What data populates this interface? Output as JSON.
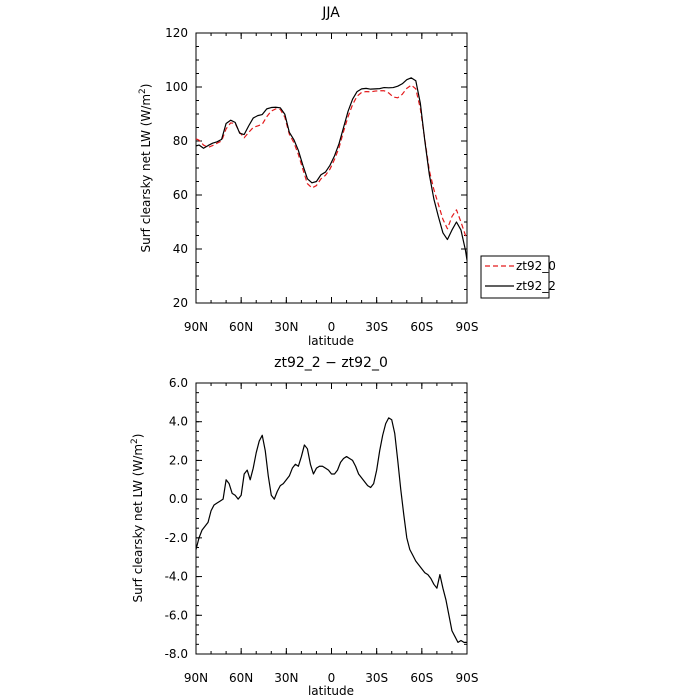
{
  "chart_data": [
    {
      "type": "line",
      "title": "JJA",
      "xlabel": "latitude",
      "ylabel": "Surf clearsky net LW (W/m",
      "ylabel_sup": "2",
      "ylabel_tail": ")",
      "x_ticks": [
        "90N",
        "60N",
        "30N",
        "0",
        "30S",
        "60S",
        "90S"
      ],
      "x_tick_values": [
        90,
        60,
        30,
        0,
        -30,
        -60,
        -90
      ],
      "xlim": [
        90,
        -90
      ],
      "ylim": [
        20,
        120
      ],
      "y_ticks": [
        "20",
        "40",
        "60",
        "80",
        "100",
        "120"
      ],
      "y_tick_values": [
        20,
        40,
        60,
        80,
        100,
        120
      ],
      "grid": false,
      "legend": {
        "placement": "right",
        "entries": [
          "zt92_0",
          "zt92_2"
        ]
      },
      "series": [
        {
          "name": "zt92_0",
          "color": "#e31a1c",
          "dash": "dashed",
          "x": [
            90,
            88,
            85,
            82,
            79,
            76,
            73,
            70,
            67,
            64,
            61,
            58,
            55,
            52,
            49,
            46,
            43,
            40,
            37,
            34,
            31,
            28,
            25,
            22,
            19,
            16,
            13,
            10,
            7,
            4,
            1,
            -2,
            -5,
            -8,
            -11,
            -14,
            -17,
            -20,
            -23,
            -26,
            -29,
            -32,
            -35,
            -38,
            -41,
            -44,
            -47,
            -50,
            -53,
            -56,
            -59,
            -62,
            -65,
            -68,
            -71,
            -74,
            -77,
            -80,
            -83,
            -86,
            -89,
            -90
          ],
          "y": [
            80.8,
            80.3,
            78.5,
            77.6,
            78.3,
            79.2,
            80.0,
            84.5,
            86.7,
            86.5,
            83.2,
            81.2,
            83.2,
            85.0,
            85.6,
            86.2,
            89.0,
            91.1,
            91.9,
            91.7,
            88.8,
            82.5,
            79.4,
            75.0,
            69.5,
            64.2,
            62.6,
            63.5,
            66.0,
            67.3,
            69.6,
            73.2,
            77.5,
            83.5,
            89.0,
            93.5,
            96.6,
            98.0,
            98.3,
            98.2,
            98.5,
            98.6,
            98.6,
            97.8,
            96.3,
            96.0,
            97.3,
            99.5,
            100.7,
            99.3,
            92.0,
            80.5,
            69.0,
            62.0,
            56.5,
            51.0,
            47.5,
            52.0,
            54.5,
            50.0,
            45.0,
            44.5
          ]
        },
        {
          "name": "zt92_2",
          "color": "#000000",
          "dash": "solid",
          "x": [
            90,
            88,
            85,
            82,
            79,
            76,
            73,
            70,
            67,
            64,
            61,
            58,
            55,
            52,
            49,
            46,
            43,
            40,
            37,
            34,
            31,
            28,
            25,
            22,
            19,
            16,
            13,
            10,
            7,
            4,
            1,
            -2,
            -5,
            -8,
            -11,
            -14,
            -17,
            -20,
            -23,
            -26,
            -29,
            -32,
            -35,
            -38,
            -41,
            -44,
            -47,
            -50,
            -53,
            -56,
            -59,
            -62,
            -65,
            -68,
            -71,
            -74,
            -77,
            -80,
            -83,
            -86,
            -89,
            -90
          ],
          "y": [
            78.2,
            78.5,
            77.3,
            78.3,
            79.2,
            79.7,
            80.6,
            86.5,
            87.7,
            86.9,
            82.9,
            82.4,
            85.6,
            88.5,
            89.4,
            89.8,
            91.9,
            92.4,
            92.5,
            92.3,
            89.9,
            83.2,
            80.5,
            76.5,
            71.0,
            66.0,
            64.5,
            65.0,
            67.5,
            68.5,
            71.0,
            74.5,
            79.0,
            85.0,
            91.0,
            95.5,
            98.3,
            99.3,
            99.5,
            99.2,
            99.3,
            99.4,
            99.8,
            99.7,
            99.8,
            100.3,
            101.2,
            102.7,
            103.4,
            102.3,
            94.0,
            80.0,
            67.5,
            58.5,
            52.0,
            46.0,
            43.5,
            47.0,
            50.0,
            47.0,
            39.5,
            35.8
          ]
        }
      ]
    },
    {
      "type": "line",
      "title": "zt92_2 − zt92_0",
      "xlabel": "latitude",
      "ylabel": "Surf clearsky net LW (W/m",
      "ylabel_sup": "2",
      "ylabel_tail": ")",
      "x_ticks": [
        "90N",
        "60N",
        "30N",
        "0",
        "30S",
        "60S",
        "90S"
      ],
      "x_tick_values": [
        90,
        60,
        30,
        0,
        -30,
        -60,
        -90
      ],
      "xlim": [
        90,
        -90
      ],
      "ylim": [
        -8,
        6
      ],
      "y_ticks": [
        "-8.0",
        "-6.0",
        "-4.0",
        "-2.0",
        "0.0",
        "2.0",
        "4.0",
        "6.0"
      ],
      "y_tick_values": [
        -8,
        -6,
        -4,
        -2,
        0,
        2,
        4,
        6
      ],
      "grid": false,
      "series": [
        {
          "color": "#000000",
          "dash": "solid",
          "x": [
            90,
            88,
            86,
            84,
            82,
            80,
            78,
            76,
            74,
            72,
            70,
            68,
            66,
            64,
            62,
            60,
            58,
            56,
            54,
            52,
            50,
            48,
            46,
            44,
            42,
            40,
            38,
            36,
            34,
            32,
            30,
            28,
            26,
            24,
            22,
            20,
            18,
            16,
            14,
            12,
            10,
            8,
            6,
            4,
            2,
            0,
            -2,
            -4,
            -6,
            -8,
            -10,
            -12,
            -14,
            -16,
            -18,
            -20,
            -22,
            -24,
            -26,
            -28,
            -30,
            -32,
            -34,
            -36,
            -38,
            -40,
            -42,
            -44,
            -46,
            -48,
            -50,
            -52,
            -54,
            -56,
            -58,
            -60,
            -62,
            -64,
            -66,
            -68,
            -70,
            -72,
            -74,
            -76,
            -78,
            -80,
            -82,
            -84,
            -86,
            -88,
            -90
          ],
          "y": [
            -2.6,
            -2.0,
            -1.6,
            -1.4,
            -1.2,
            -0.6,
            -0.3,
            -0.2,
            -0.1,
            0.0,
            1.0,
            0.8,
            0.3,
            0.2,
            0.0,
            0.2,
            1.3,
            1.5,
            1.0,
            1.6,
            2.4,
            3.0,
            3.3,
            2.5,
            1.2,
            0.2,
            0.0,
            0.4,
            0.7,
            0.8,
            1.0,
            1.2,
            1.6,
            1.8,
            1.7,
            2.2,
            2.8,
            2.6,
            1.8,
            1.3,
            1.6,
            1.7,
            1.7,
            1.6,
            1.5,
            1.3,
            1.3,
            1.5,
            1.9,
            2.1,
            2.2,
            2.1,
            2.0,
            1.7,
            1.3,
            1.1,
            0.9,
            0.7,
            0.6,
            0.8,
            1.5,
            2.5,
            3.3,
            3.9,
            4.2,
            4.1,
            3.4,
            2.0,
            0.5,
            -0.8,
            -2.0,
            -2.6,
            -2.9,
            -3.2,
            -3.4,
            -3.6,
            -3.8,
            -3.9,
            -4.1,
            -4.4,
            -4.6,
            -3.9,
            -4.6,
            -5.2,
            -6.0,
            -6.8,
            -7.1,
            -7.4,
            -7.3,
            -7.4,
            -7.4
          ]
        }
      ]
    }
  ]
}
